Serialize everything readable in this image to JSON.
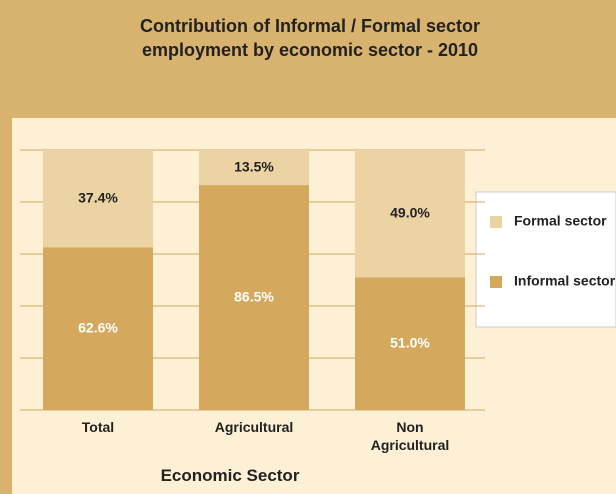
{
  "chart_data": {
    "type": "stacked_bar",
    "title": "Contribution of Informal / Formal sector employment by economic sector - 2010",
    "x_label": "Economic Sector",
    "categories": [
      "Total",
      "Agricultural",
      "Non Agricultural"
    ],
    "series": [
      {
        "name": "Informal sector",
        "color": "#d4a95e",
        "values": [
          62.6,
          86.5,
          51.0
        ],
        "value_labels": [
          "62.6%",
          "86.5%",
          "51.0%"
        ]
      },
      {
        "name": "Formal sector",
        "color": "#ecd3a3",
        "values": [
          37.4,
          13.5,
          49.0
        ],
        "value_labels": [
          "37.4%",
          "13.5%",
          "49.0%"
        ]
      }
    ],
    "ylim": [
      0,
      100
    ],
    "yticks": [
      0,
      20,
      40,
      60,
      80,
      100
    ],
    "grid": true
  }
}
